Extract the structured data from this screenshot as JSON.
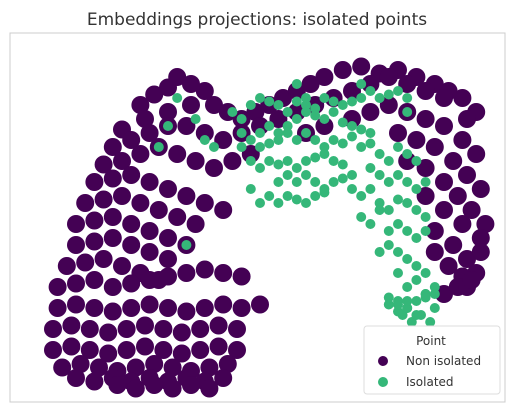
{
  "chart_data": {
    "type": "scatter",
    "title": "Embeddings projections: isolated points",
    "xlabel": "",
    "ylabel": "",
    "axes_visible": false,
    "grid": false,
    "legend": {
      "title": "Point",
      "placement": "lower-right",
      "entries": [
        "Non isolated",
        "Isolated"
      ]
    },
    "colors": {
      "non_isolated": "#440154",
      "isolated": "#35b779",
      "frame": "#cccccc",
      "background": "#ffffff"
    },
    "xlim": [
      0,
      100
    ],
    "ylim": [
      0,
      100
    ],
    "series": [
      {
        "name": "Non isolated",
        "color": "#440154",
        "x": [
          24,
          27,
          30,
          32,
          35,
          38,
          20,
          25,
          30,
          35,
          40,
          43,
          46,
          49,
          52,
          55,
          58,
          61,
          64,
          68,
          72,
          76,
          80,
          84,
          88,
          91,
          94,
          97,
          18,
          22,
          26,
          30,
          34,
          38,
          42,
          46,
          50,
          54,
          58,
          62,
          66,
          70,
          74,
          78,
          82,
          86,
          90,
          95,
          16,
          20,
          24,
          28,
          32,
          36,
          40,
          44,
          48,
          60,
          64,
          70,
          74,
          78,
          82,
          86,
          90,
          94,
          97,
          14,
          18,
          22,
          26,
          30,
          34,
          38,
          42,
          80,
          84,
          88,
          92,
          95,
          98,
          12,
          16,
          20,
          24,
          28,
          32,
          36,
          82,
          86,
          90,
          93,
          96,
          99,
          10,
          14,
          18,
          22,
          26,
          30,
          34,
          86,
          90,
          94,
          98,
          10,
          14,
          18,
          22,
          26,
          30,
          88,
          92,
          95,
          98,
          8,
          12,
          16,
          20,
          24,
          28,
          88,
          91,
          94,
          97,
          6,
          10,
          14,
          18,
          22,
          26,
          30,
          34,
          38,
          42,
          46,
          90,
          93,
          95,
          96,
          6,
          10,
          14,
          18,
          22,
          26,
          30,
          34,
          38,
          42,
          46,
          50,
          5,
          9,
          13,
          17,
          21,
          25,
          29,
          33,
          37,
          41,
          45,
          5,
          9,
          13,
          17,
          21,
          25,
          29,
          33,
          37,
          41,
          45,
          7,
          11,
          15,
          19,
          23,
          27,
          31,
          35,
          39,
          43,
          10,
          14,
          18,
          22,
          26,
          30,
          34,
          38,
          42,
          19,
          23,
          27,
          31,
          35,
          39
        ],
        "y": [
          82,
          85,
          87,
          90,
          88,
          86,
          75,
          78,
          80,
          82,
          82,
          80,
          78,
          80,
          82,
          84,
          86,
          88,
          90,
          92,
          93,
          91,
          92,
          90,
          88,
          86,
          84,
          80,
          70,
          72,
          74,
          76,
          76,
          74,
          72,
          74,
          76,
          78,
          80,
          82,
          84,
          86,
          88,
          90,
          88,
          86,
          84,
          78,
          65,
          66,
          68,
          70,
          68,
          66,
          64,
          66,
          68,
          74,
          76,
          78,
          80,
          82,
          80,
          78,
          76,
          72,
          68,
          60,
          61,
          62,
          60,
          58,
          56,
          54,
          52,
          74,
          72,
          70,
          66,
          62,
          58,
          54,
          55,
          56,
          54,
          52,
          50,
          48,
          66,
          64,
          60,
          56,
          52,
          48,
          48,
          49,
          50,
          48,
          46,
          44,
          42,
          56,
          52,
          48,
          44,
          42,
          43,
          44,
          42,
          40,
          38,
          46,
          42,
          38,
          40,
          36,
          37,
          38,
          36,
          34,
          32,
          40,
          36,
          33,
          34,
          30,
          31,
          32,
          30,
          31,
          32,
          33,
          34,
          35,
          34,
          33,
          28,
          30,
          30,
          32,
          24,
          25,
          24,
          23,
          24,
          25,
          24,
          23,
          24,
          25,
          24,
          25,
          18,
          19,
          18,
          17,
          18,
          19,
          18,
          17,
          18,
          19,
          18,
          12,
          13,
          12,
          11,
          12,
          13,
          12,
          11,
          12,
          13,
          12,
          7,
          8,
          7,
          6,
          7,
          8,
          7,
          6,
          7,
          8,
          4,
          3,
          4,
          3,
          4,
          3,
          4,
          3,
          4,
          2,
          1,
          2,
          1,
          2,
          1
        ]
      },
      {
        "name": "Isolated",
        "color": "#35b779",
        "x": [
          32,
          30,
          28,
          36,
          38,
          40,
          44,
          46,
          48,
          50,
          52,
          54,
          56,
          58,
          60,
          62,
          64,
          66,
          68,
          70,
          72,
          74,
          76,
          78,
          80,
          82,
          50,
          52,
          54,
          56,
          58,
          60,
          62,
          64,
          66,
          68,
          70,
          72,
          46,
          48,
          50,
          52,
          54,
          56,
          58,
          60,
          62,
          64,
          66,
          68,
          70,
          48,
          50,
          52,
          54,
          56,
          58,
          60,
          62,
          64,
          66,
          68,
          72,
          74,
          76,
          78,
          80,
          82,
          84,
          54,
          56,
          58,
          60,
          62,
          64,
          66,
          68,
          70,
          74,
          76,
          78,
          80,
          82,
          84,
          86,
          50,
          52,
          54,
          56,
          58,
          60,
          62,
          64,
          70,
          72,
          74,
          76,
          78,
          80,
          82,
          84,
          86,
          72,
          74,
          76,
          78,
          80,
          82,
          84,
          86,
          76,
          78,
          80,
          82,
          84,
          86,
          80,
          82,
          84,
          86,
          88,
          80,
          82,
          84,
          86,
          88,
          81,
          83,
          85,
          87,
          78,
          80,
          82,
          84,
          78,
          80,
          82,
          86,
          88,
          34,
          48,
          46,
          58,
          60,
          72,
          74,
          82
        ],
        "y": [
          84,
          76,
          70,
          78,
          72,
          70,
          80,
          78,
          82,
          84,
          83,
          82,
          80,
          83,
          82,
          81,
          84,
          83,
          82,
          83,
          84,
          86,
          84,
          85,
          86,
          84,
          74,
          76,
          74,
          76,
          78,
          80,
          79,
          78,
          80,
          77,
          76,
          75,
          70,
          72,
          70,
          71,
          72,
          74,
          72,
          74,
          72,
          70,
          72,
          71,
          73,
          66,
          64,
          66,
          65,
          66,
          64,
          66,
          67,
          68,
          66,
          65,
          70,
          71,
          68,
          66,
          70,
          68,
          66,
          60,
          62,
          60,
          62,
          60,
          58,
          60,
          61,
          62,
          64,
          62,
          60,
          62,
          60,
          58,
          60,
          54,
          56,
          54,
          56,
          55,
          54,
          56,
          57,
          58,
          56,
          58,
          54,
          52,
          55,
          54,
          52,
          50,
          50,
          48,
          52,
          46,
          48,
          46,
          44,
          46,
          40,
          42,
          40,
          38,
          36,
          34,
          34,
          30,
          32,
          28,
          30,
          26,
          24,
          26,
          28,
          24,
          22,
          20,
          22,
          20,
          25,
          23,
          24,
          22,
          27,
          25,
          26,
          27,
          28,
          42,
          58,
          74,
          88,
          84,
          88,
          74,
          80
        ]
      }
    ]
  }
}
